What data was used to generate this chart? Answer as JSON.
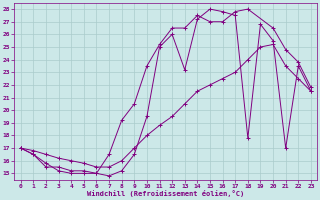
{
  "xlabel": "Windchill (Refroidissement éolien,°C)",
  "bg_color": "#cce8e8",
  "grid_color": "#aacccc",
  "line_color": "#800080",
  "xlim": [
    -0.5,
    23.5
  ],
  "ylim": [
    14.5,
    28.5
  ],
  "xticks": [
    0,
    1,
    2,
    3,
    4,
    5,
    6,
    7,
    8,
    9,
    10,
    11,
    12,
    13,
    14,
    15,
    16,
    17,
    18,
    19,
    20,
    21,
    22,
    23
  ],
  "yticks": [
    15,
    16,
    17,
    18,
    19,
    20,
    21,
    22,
    23,
    24,
    25,
    26,
    27,
    28
  ],
  "curve1_x": [
    0,
    1,
    2,
    3,
    4,
    5,
    6,
    7,
    8,
    9,
    10,
    11,
    12,
    13,
    14,
    15,
    16,
    17,
    18,
    19,
    20,
    21,
    22,
    23
  ],
  "curve1_y": [
    17.0,
    16.5,
    15.8,
    15.2,
    15.0,
    15.0,
    15.0,
    14.8,
    15.2,
    16.5,
    19.5,
    25.0,
    26.0,
    23.2,
    27.2,
    28.0,
    27.8,
    27.5,
    17.8,
    26.8,
    25.5,
    17.0,
    23.5,
    21.5
  ],
  "curve2_x": [
    0,
    1,
    2,
    3,
    4,
    5,
    6,
    7,
    8,
    9,
    10,
    11,
    12,
    13,
    14,
    15,
    16,
    17,
    18,
    20,
    21,
    22,
    23
  ],
  "curve2_y": [
    17.0,
    16.5,
    15.5,
    15.5,
    15.2,
    15.2,
    15.0,
    16.5,
    19.2,
    20.5,
    23.5,
    25.2,
    26.5,
    26.5,
    27.5,
    27.0,
    27.0,
    27.8,
    28.0,
    26.5,
    24.8,
    23.8,
    21.8
  ],
  "curve3_x": [
    0,
    1,
    2,
    3,
    4,
    5,
    6,
    7,
    8,
    9,
    10,
    11,
    12,
    13,
    14,
    15,
    16,
    17,
    18,
    19,
    20,
    21,
    22,
    23
  ],
  "curve3_y": [
    17.0,
    16.8,
    16.5,
    16.2,
    16.0,
    15.8,
    15.5,
    15.5,
    16.0,
    17.0,
    18.0,
    18.8,
    19.5,
    20.5,
    21.5,
    22.0,
    22.5,
    23.0,
    24.0,
    25.0,
    25.2,
    23.5,
    22.5,
    21.5
  ]
}
